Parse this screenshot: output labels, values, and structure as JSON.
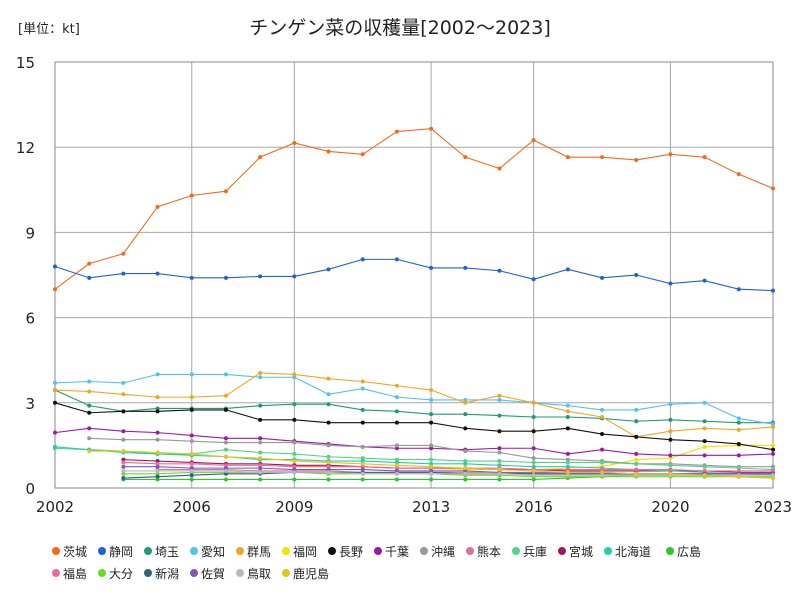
{
  "chart_data": {
    "type": "line",
    "title": "チンゲン菜の収穫量[2002～2023]",
    "unit_label": "[単位：kt]",
    "xlabel": "",
    "ylabel": "",
    "ylim": [
      0,
      15
    ],
    "xlim": [
      2002,
      2023
    ],
    "yticks": [
      "0",
      "3",
      "6",
      "9",
      "12",
      "15"
    ],
    "xticks": [
      "2002",
      "2006",
      "2009",
      "2013",
      "2016",
      "2020",
      "2023"
    ],
    "grid": true,
    "legend_placement": "bottom",
    "series": [
      {
        "name": "茨城",
        "color": "#f26b1d",
        "values": [
          7.0,
          7.9,
          8.25,
          9.9,
          10.3,
          10.45,
          11.65,
          12.15,
          11.85,
          11.75,
          12.55,
          12.65,
          11.65,
          11.25,
          12.25,
          11.65,
          11.65,
          11.55,
          11.75,
          11.65,
          11.05,
          10.55
        ]
      },
      {
        "name": "静岡",
        "color": "#1f62d0",
        "values": [
          7.8,
          7.4,
          7.55,
          7.55,
          7.4,
          7.4,
          7.45,
          7.45,
          7.7,
          8.05,
          8.05,
          7.75,
          7.75,
          7.65,
          7.35,
          7.7,
          7.4,
          7.5,
          7.2,
          7.3,
          7.0,
          6.95
        ]
      },
      {
        "name": "埼玉",
        "color": "#1c9b76",
        "values": [
          3.45,
          2.9,
          2.7,
          2.8,
          2.8,
          2.8,
          2.9,
          2.95,
          2.95,
          2.75,
          2.7,
          2.6,
          2.6,
          2.55,
          2.5,
          2.5,
          2.45,
          2.35,
          2.4,
          2.35,
          2.3,
          2.3
        ]
      },
      {
        "name": "愛知",
        "color": "#56c1ee",
        "values": [
          3.7,
          3.75,
          3.7,
          4.0,
          4.0,
          4.0,
          3.9,
          3.9,
          3.3,
          3.5,
          3.2,
          3.1,
          3.1,
          3.1,
          3.0,
          2.9,
          2.75,
          2.75,
          2.95,
          3.0,
          2.45,
          2.25
        ]
      },
      {
        "name": "群馬",
        "color": "#f0a625",
        "values": [
          3.45,
          3.4,
          3.3,
          3.2,
          3.2,
          3.25,
          4.05,
          4.0,
          3.85,
          3.75,
          3.6,
          3.45,
          3.0,
          3.25,
          3.0,
          2.7,
          2.5,
          1.8,
          2.0,
          2.1,
          2.05,
          2.15
        ]
      },
      {
        "name": "福岡",
        "color": "#f2e200",
        "values": [
          null,
          null,
          null,
          null,
          null,
          null,
          null,
          0.8,
          0.75,
          0.75,
          0.7,
          0.7,
          0.65,
          0.65,
          0.65,
          0.7,
          0.75,
          1.0,
          1.05,
          1.45,
          1.5,
          1.5
        ]
      },
      {
        "name": "長野",
        "color": "#111111",
        "values": [
          3.0,
          2.65,
          2.7,
          2.7,
          2.75,
          2.75,
          2.4,
          2.4,
          2.3,
          2.3,
          2.3,
          2.3,
          2.1,
          2.0,
          2.0,
          2.1,
          1.9,
          1.8,
          1.7,
          1.65,
          1.55,
          1.35
        ]
      },
      {
        "name": "千葉",
        "color": "#9b1aa8",
        "values": [
          1.95,
          2.1,
          2.0,
          1.95,
          1.85,
          1.75,
          1.75,
          1.65,
          1.55,
          1.45,
          1.4,
          1.4,
          1.35,
          1.4,
          1.4,
          1.2,
          1.35,
          1.2,
          1.15,
          1.15,
          1.15,
          1.2
        ]
      },
      {
        "name": "沖縄",
        "color": "#999999",
        "values": [
          null,
          1.75,
          1.7,
          1.7,
          1.65,
          1.6,
          1.6,
          1.6,
          1.5,
          1.45,
          1.5,
          1.5,
          1.3,
          1.25,
          1.05,
          1.0,
          0.95,
          0.85,
          0.85,
          0.8,
          0.75,
          0.75
        ]
      },
      {
        "name": "熊本",
        "color": "#e0709a",
        "values": [
          null,
          null,
          null,
          0.65,
          0.65,
          0.65,
          0.6,
          0.6,
          0.6,
          0.55,
          0.55,
          0.55,
          0.55,
          0.55,
          0.5,
          0.5,
          0.5,
          0.5,
          0.5,
          0.5,
          0.5,
          0.5
        ]
      },
      {
        "name": "兵庫",
        "color": "#55d28a",
        "values": [
          1.4,
          1.35,
          1.3,
          1.2,
          1.2,
          1.35,
          1.25,
          1.2,
          1.1,
          1.05,
          1.0,
          1.0,
          0.95,
          0.95,
          0.9,
          0.9,
          0.9,
          0.85,
          0.8,
          0.75,
          0.7,
          0.65
        ]
      },
      {
        "name": "宮城",
        "color": "#a0185a",
        "values": [
          null,
          null,
          1.0,
          0.95,
          0.9,
          0.85,
          0.85,
          0.8,
          0.8,
          0.75,
          0.7,
          0.7,
          0.7,
          0.65,
          0.65,
          0.6,
          0.6,
          0.6,
          0.6,
          0.6,
          0.55,
          0.55
        ]
      },
      {
        "name": "北海道",
        "color": "#22d0a8",
        "values": [
          1.45,
          1.35,
          1.25,
          1.2,
          1.15,
          1.1,
          1.0,
          1.0,
          0.95,
          0.95,
          0.9,
          0.85,
          0.85,
          0.8,
          0.75,
          0.75,
          0.7,
          0.65,
          0.6,
          0.55,
          0.5,
          0.45
        ]
      },
      {
        "name": "広島",
        "color": "#2ec72e",
        "values": [
          null,
          null,
          0.3,
          0.3,
          0.3,
          0.3,
          0.3,
          0.3,
          0.3,
          0.3,
          0.3,
          0.3,
          0.3,
          0.3,
          0.3,
          0.35,
          0.4,
          0.45,
          0.45,
          0.45,
          0.4,
          0.35
        ]
      },
      {
        "name": "福島",
        "color": "#f06aa0",
        "values": [
          null,
          null,
          0.9,
          0.85,
          0.85,
          0.8,
          0.8,
          0.75,
          0.75,
          0.75,
          0.7,
          0.7,
          0.7,
          0.7,
          0.65,
          0.65,
          0.65,
          0.65,
          0.65,
          0.6,
          0.6,
          0.6
        ]
      },
      {
        "name": "大分",
        "color": "#66dd22",
        "values": [
          null,
          null,
          0.5,
          0.5,
          0.55,
          0.55,
          0.55,
          0.55,
          0.5,
          0.5,
          0.5,
          0.5,
          0.45,
          0.45,
          0.4,
          0.4,
          0.4,
          0.4,
          0.4,
          0.4,
          0.4,
          0.4
        ]
      },
      {
        "name": "新潟",
        "color": "#2f6478",
        "values": [
          null,
          null,
          0.35,
          0.4,
          0.45,
          0.5,
          0.5,
          0.55,
          0.55,
          0.55,
          0.55,
          0.55,
          0.5,
          0.5,
          0.5,
          0.5,
          0.5,
          0.5,
          0.5,
          0.5,
          0.5,
          0.5
        ]
      },
      {
        "name": "佐賀",
        "color": "#7a5ab8",
        "values": [
          null,
          null,
          0.75,
          0.75,
          0.7,
          0.7,
          0.7,
          0.65,
          0.65,
          0.65,
          0.6,
          0.6,
          0.6,
          0.55,
          0.55,
          0.55,
          0.55,
          0.5,
          0.5,
          0.5,
          0.5,
          0.5
        ]
      },
      {
        "name": "鳥取",
        "color": "#b8b8c8",
        "values": [
          null,
          null,
          0.6,
          0.6,
          0.6,
          0.6,
          0.55,
          0.55,
          0.55,
          0.5,
          0.5,
          0.5,
          0.5,
          0.5,
          0.45,
          0.45,
          0.45,
          0.45,
          0.45,
          0.45,
          0.45,
          0.45
        ]
      },
      {
        "name": "鹿児島",
        "color": "#e8c418",
        "values": [
          null,
          1.3,
          1.3,
          1.25,
          1.2,
          1.1,
          1.05,
          0.95,
          0.9,
          0.85,
          0.8,
          0.75,
          0.7,
          0.65,
          0.6,
          0.55,
          0.55,
          0.5,
          0.5,
          0.45,
          0.4,
          0.35
        ]
      }
    ]
  }
}
